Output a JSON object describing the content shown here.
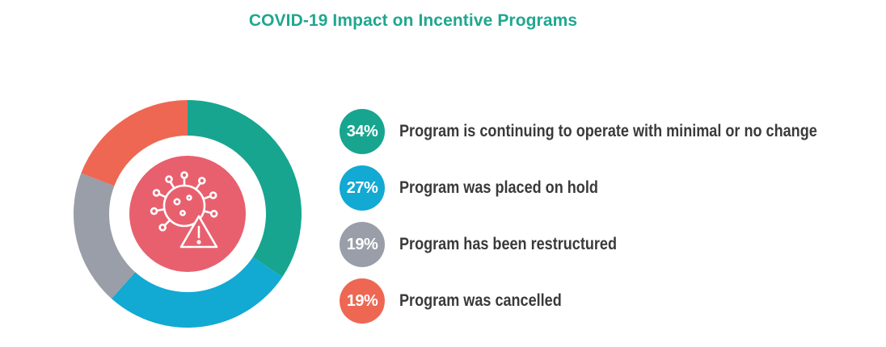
{
  "colors": {
    "title": "#1fa78f",
    "center_fill": "#e8606e",
    "icon_stroke": "#ffffff"
  },
  "icon": "virus-warning-icon",
  "chart_data": {
    "type": "pie",
    "title": "COVID-19 Impact on Incentive Programs",
    "donut": true,
    "start": "top",
    "direction": "clockwise",
    "slices": [
      {
        "label": "Program is continuing to operate with minimal or no change",
        "value": 34,
        "display": "34%",
        "color": "#17a58f"
      },
      {
        "label": "Program was placed on hold",
        "value": 27,
        "display": "27%",
        "color": "#12a9d3"
      },
      {
        "label": "Program has been restructured",
        "value": 19,
        "display": "19%",
        "color": "#999ea8"
      },
      {
        "label": "Program was cancelled",
        "value": 19,
        "display": "19%",
        "color": "#ee6753"
      }
    ],
    "legend_position": "right"
  }
}
